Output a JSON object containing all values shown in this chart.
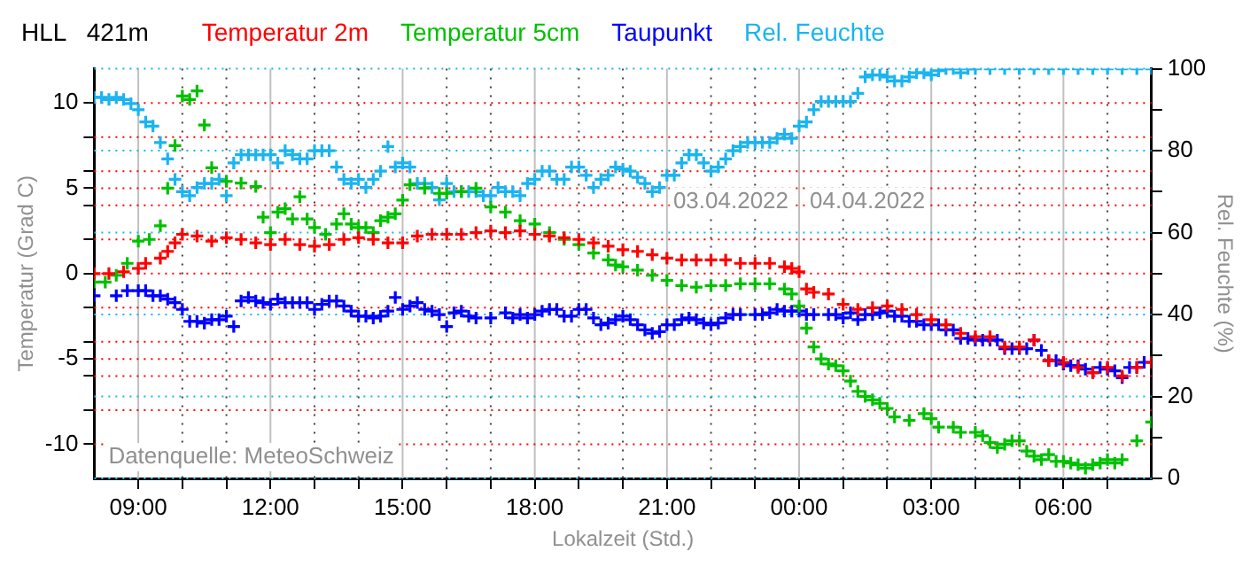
{
  "chart_data": {
    "type": "scatter",
    "title": "HLL   421m",
    "xlabel": "Lokalzeit (Std.)",
    "ylabel": "Temperatur (Grad C)",
    "y2label": "Rel. Feuchte (%)",
    "annotations": [
      "03.04.2022",
      "04.04.2022",
      "Datenquelle: MeteoSchweiz"
    ],
    "xlim": [
      "2022-04-03T08:00",
      "2022-04-04T08:00"
    ],
    "xticks": [
      {
        "value": "2022-04-03T09:00",
        "label": "09:00"
      },
      {
        "value": "2022-04-03T10:00",
        "label": null
      },
      {
        "value": "2022-04-03T11:00",
        "label": null
      },
      {
        "value": "2022-04-03T12:00",
        "label": "12:00"
      },
      {
        "value": "2022-04-03T13:00",
        "label": null
      },
      {
        "value": "2022-04-03T14:00",
        "label": null
      },
      {
        "value": "2022-04-03T15:00",
        "label": "15:00"
      },
      {
        "value": "2022-04-03T16:00",
        "label": null
      },
      {
        "value": "2022-04-03T17:00",
        "label": null
      },
      {
        "value": "2022-04-03T18:00",
        "label": "18:00"
      },
      {
        "value": "2022-04-03T19:00",
        "label": null
      },
      {
        "value": "2022-04-03T20:00",
        "label": null
      },
      {
        "value": "2022-04-03T21:00",
        "label": "21:00"
      },
      {
        "value": "2022-04-03T22:00",
        "label": null
      },
      {
        "value": "2022-04-03T23:00",
        "label": null
      },
      {
        "value": "2022-04-04T00:00",
        "label": "00:00"
      },
      {
        "value": "2022-04-04T01:00",
        "label": null
      },
      {
        "value": "2022-04-04T02:00",
        "label": null
      },
      {
        "value": "2022-04-04T03:00",
        "label": "03:00"
      },
      {
        "value": "2022-04-04T04:00",
        "label": null
      },
      {
        "value": "2022-04-04T05:00",
        "label": null
      },
      {
        "value": "2022-04-04T06:00",
        "label": "06:00"
      },
      {
        "value": "2022-04-04T07:00",
        "label": null
      }
    ],
    "ylim": [
      -12,
      12
    ],
    "yticks": [
      -10,
      {
        "value": -8,
        "label": null
      },
      {
        "value": -6,
        "label": null
      },
      -5,
      {
        "value": -4,
        "label": null
      },
      {
        "value": -2,
        "label": null
      },
      0,
      {
        "value": 2,
        "label": null
      },
      {
        "value": 4,
        "label": null
      },
      5,
      {
        "value": 6,
        "label": null
      },
      {
        "value": 8,
        "label": null
      },
      10
    ],
    "y2lim": [
      0,
      100
    ],
    "y2ticks": [
      0,
      {
        "value": 10,
        "label": null
      },
      20,
      {
        "value": 30,
        "label": null
      },
      40,
      {
        "value": 50,
        "label": null
      },
      60,
      {
        "value": 70,
        "label": null
      },
      80,
      {
        "value": 90,
        "label": null
      },
      100
    ],
    "grid": true,
    "legend": "top",
    "marker": "cross",
    "series": [
      {
        "name": "Temperatur 2m",
        "color": "#ff0000",
        "x": [
          "2022-04-03T08:00",
          "2022-04-03T08:20",
          "2022-04-03T08:40",
          "2022-04-03T09:00",
          "2022-04-03T09:10",
          "2022-04-03T09:30",
          "2022-04-03T09:40",
          "2022-04-03T09:50",
          "2022-04-03T10:00",
          "2022-04-03T10:20",
          "2022-04-03T10:40",
          "2022-04-03T11:00",
          "2022-04-03T11:20",
          "2022-04-03T11:40",
          "2022-04-03T12:00",
          "2022-04-03T12:20",
          "2022-04-03T12:40",
          "2022-04-03T13:00",
          "2022-04-03T13:20",
          "2022-04-03T13:40",
          "2022-04-03T14:00",
          "2022-04-03T14:20",
          "2022-04-03T14:40",
          "2022-04-03T15:00",
          "2022-04-03T15:20",
          "2022-04-03T15:40",
          "2022-04-03T16:00",
          "2022-04-03T16:20",
          "2022-04-03T16:40",
          "2022-04-03T17:00",
          "2022-04-03T17:20",
          "2022-04-03T17:40",
          "2022-04-03T18:00",
          "2022-04-03T18:20",
          "2022-04-03T18:40",
          "2022-04-03T19:00",
          "2022-04-03T19:20",
          "2022-04-03T19:40",
          "2022-04-03T20:00",
          "2022-04-03T20:20",
          "2022-04-03T20:40",
          "2022-04-03T21:00",
          "2022-04-03T21:20",
          "2022-04-03T21:40",
          "2022-04-03T22:00",
          "2022-04-03T22:20",
          "2022-04-03T22:40",
          "2022-04-03T23:00",
          "2022-04-03T23:20",
          "2022-04-03T23:40",
          "2022-04-03T23:50",
          "2022-04-04T00:00",
          "2022-04-04T00:10",
          "2022-04-04T00:20",
          "2022-04-04T00:40",
          "2022-04-04T01:00",
          "2022-04-04T01:20",
          "2022-04-04T01:40",
          "2022-04-04T02:00",
          "2022-04-04T02:20",
          "2022-04-04T02:40",
          "2022-04-04T03:00",
          "2022-04-04T03:20",
          "2022-04-04T03:40",
          "2022-04-04T04:00",
          "2022-04-04T04:20",
          "2022-04-04T04:40",
          "2022-04-04T05:00",
          "2022-04-04T05:20",
          "2022-04-04T05:40",
          "2022-04-04T06:00",
          "2022-04-04T06:20",
          "2022-04-04T06:40",
          "2022-04-04T07:00",
          "2022-04-04T07:20",
          "2022-04-04T07:40",
          "2022-04-04T08:00"
        ],
        "values": [
          0.0,
          0.0,
          0.1,
          0.3,
          0.6,
          0.9,
          1.3,
          1.8,
          2.3,
          2.2,
          1.9,
          2.1,
          2.0,
          1.8,
          1.7,
          2.0,
          1.7,
          1.6,
          1.7,
          2.0,
          2.1,
          2.0,
          1.8,
          1.8,
          2.2,
          2.3,
          2.3,
          2.3,
          2.4,
          2.5,
          2.4,
          2.5,
          2.3,
          2.2,
          2.1,
          2.0,
          1.8,
          1.6,
          1.4,
          1.3,
          1.1,
          0.9,
          0.8,
          0.8,
          0.8,
          0.8,
          0.6,
          0.6,
          0.6,
          0.4,
          0.3,
          0.1,
          -0.9,
          -1.1,
          -1.2,
          -1.8,
          -2.1,
          -2.0,
          -1.9,
          -2.1,
          -2.4,
          -2.7,
          -3.0,
          -3.5,
          -3.7,
          -3.7,
          -4.3,
          -4.3,
          -3.9,
          -5.1,
          -5.2,
          -5.5,
          -5.8,
          -5.5,
          -6.0,
          -5.5,
          -5.2
        ]
      },
      {
        "name": "Temperatur 5cm",
        "color": "#00c000",
        "x": [
          "2022-04-03T08:00",
          "2022-04-03T08:15",
          "2022-04-03T08:30",
          "2022-04-03T08:45",
          "2022-04-03T09:00",
          "2022-04-03T09:15",
          "2022-04-03T09:30",
          "2022-04-03T09:40",
          "2022-04-03T09:50",
          "2022-04-03T10:00",
          "2022-04-03T10:10",
          "2022-04-03T10:20",
          "2022-04-03T10:30",
          "2022-04-03T10:40",
          "2022-04-03T11:00",
          "2022-04-03T11:20",
          "2022-04-03T11:40",
          "2022-04-03T11:50",
          "2022-04-03T12:00",
          "2022-04-03T12:10",
          "2022-04-03T12:20",
          "2022-04-03T12:30",
          "2022-04-03T12:40",
          "2022-04-03T12:50",
          "2022-04-03T13:00",
          "2022-04-03T13:15",
          "2022-04-03T13:30",
          "2022-04-03T13:40",
          "2022-04-03T13:50",
          "2022-04-03T14:00",
          "2022-04-03T14:10",
          "2022-04-03T14:20",
          "2022-04-03T14:30",
          "2022-04-03T14:40",
          "2022-04-03T14:50",
          "2022-04-03T15:00",
          "2022-04-03T15:10",
          "2022-04-03T15:30",
          "2022-04-03T15:50",
          "2022-04-03T16:00",
          "2022-04-03T16:20",
          "2022-04-03T16:40",
          "2022-04-03T17:00",
          "2022-04-03T17:20",
          "2022-04-03T17:40",
          "2022-04-03T18:00",
          "2022-04-03T18:20",
          "2022-04-03T18:40",
          "2022-04-03T19:00",
          "2022-04-03T19:20",
          "2022-04-03T19:40",
          "2022-04-03T19:50",
          "2022-04-03T20:00",
          "2022-04-03T20:20",
          "2022-04-03T20:40",
          "2022-04-03T21:00",
          "2022-04-03T21:20",
          "2022-04-03T21:40",
          "2022-04-03T22:00",
          "2022-04-03T22:20",
          "2022-04-03T22:40",
          "2022-04-03T23:00",
          "2022-04-03T23:20",
          "2022-04-03T23:40",
          "2022-04-03T23:50",
          "2022-04-04T00:00",
          "2022-04-04T00:10",
          "2022-04-04T00:20",
          "2022-04-04T00:30",
          "2022-04-04T00:40",
          "2022-04-04T00:50",
          "2022-04-04T01:00",
          "2022-04-04T01:10",
          "2022-04-04T01:20",
          "2022-04-04T01:30",
          "2022-04-04T01:40",
          "2022-04-04T01:50",
          "2022-04-04T02:00",
          "2022-04-04T02:10",
          "2022-04-04T02:30",
          "2022-04-04T02:50",
          "2022-04-04T03:00",
          "2022-04-04T03:10",
          "2022-04-04T03:30",
          "2022-04-04T03:40",
          "2022-04-04T04:00",
          "2022-04-04T04:10",
          "2022-04-04T04:20",
          "2022-04-04T04:30",
          "2022-04-04T04:40",
          "2022-04-04T04:50",
          "2022-04-04T05:00",
          "2022-04-04T05:10",
          "2022-04-04T05:20",
          "2022-04-04T05:30",
          "2022-04-04T05:40",
          "2022-04-04T05:50",
          "2022-04-04T06:00",
          "2022-04-04T06:10",
          "2022-04-04T06:20",
          "2022-04-04T06:30",
          "2022-04-04T06:40",
          "2022-04-04T06:50",
          "2022-04-04T07:00",
          "2022-04-04T07:10",
          "2022-04-04T07:20",
          "2022-04-04T07:40",
          "2022-04-04T08:00"
        ],
        "values": [
          -0.5,
          -0.5,
          -0.1,
          0.6,
          1.9,
          2.0,
          2.8,
          5.0,
          7.5,
          10.4,
          10.2,
          10.7,
          8.7,
          6.2,
          5.4,
          5.3,
          5.1,
          3.3,
          2.4,
          3.6,
          3.8,
          3.2,
          4.5,
          3.2,
          2.7,
          2.3,
          2.9,
          3.5,
          2.9,
          2.7,
          2.7,
          2.4,
          3.1,
          3.3,
          3.5,
          4.3,
          5.2,
          5.0,
          4.7,
          4.7,
          4.8,
          5.0,
          3.9,
          3.6,
          3.1,
          2.9,
          2.4,
          2.0,
          1.7,
          1.2,
          0.8,
          0.5,
          0.4,
          0.2,
          -0.1,
          -0.4,
          -0.7,
          -0.8,
          -0.7,
          -0.7,
          -0.6,
          -0.6,
          -0.6,
          -0.9,
          -1.2,
          -1.9,
          -3.2,
          -4.3,
          -5.0,
          -5.3,
          -5.4,
          -5.7,
          -6.3,
          -6.9,
          -7.2,
          -7.4,
          -7.6,
          -7.9,
          -8.4,
          -8.6,
          -8.2,
          -8.5,
          -9.0,
          -9.0,
          -9.3,
          -9.3,
          -9.5,
          -9.9,
          -10.2,
          -10.0,
          -9.8,
          -9.8,
          -10.4,
          -10.7,
          -10.9,
          -10.6,
          -11.0,
          -11.0,
          -11.1,
          -11.2,
          -11.4,
          -11.2,
          -11.1,
          -10.9,
          -11.1,
          -10.9,
          -9.8,
          -8.7
        ]
      },
      {
        "name": "Taupunkt",
        "color": "#0000ff",
        "x": [
          "2022-04-03T08:00",
          "2022-04-03T08:30",
          "2022-04-03T08:45",
          "2022-04-03T09:00",
          "2022-04-03T09:10",
          "2022-04-03T09:20",
          "2022-04-03T09:30",
          "2022-04-03T09:40",
          "2022-04-03T09:50",
          "2022-04-03T10:00",
          "2022-04-03T10:10",
          "2022-04-03T10:20",
          "2022-04-03T10:30",
          "2022-04-03T10:40",
          "2022-04-03T10:50",
          "2022-04-03T11:00",
          "2022-04-03T11:10",
          "2022-04-03T11:20",
          "2022-04-03T11:30",
          "2022-04-03T11:40",
          "2022-04-03T11:50",
          "2022-04-03T12:00",
          "2022-04-03T12:10",
          "2022-04-03T12:20",
          "2022-04-03T12:30",
          "2022-04-03T12:40",
          "2022-04-03T12:50",
          "2022-04-03T13:00",
          "2022-04-03T13:10",
          "2022-04-03T13:20",
          "2022-04-03T13:30",
          "2022-04-03T13:40",
          "2022-04-03T13:50",
          "2022-04-03T14:00",
          "2022-04-03T14:10",
          "2022-04-03T14:20",
          "2022-04-03T14:30",
          "2022-04-03T14:40",
          "2022-04-03T14:50",
          "2022-04-03T15:00",
          "2022-04-03T15:10",
          "2022-04-03T15:20",
          "2022-04-03T15:30",
          "2022-04-03T15:40",
          "2022-04-03T15:50",
          "2022-04-03T16:00",
          "2022-04-03T16:10",
          "2022-04-03T16:20",
          "2022-04-03T16:30",
          "2022-04-03T16:40",
          "2022-04-03T17:00",
          "2022-04-03T17:20",
          "2022-04-03T17:30",
          "2022-04-03T17:40",
          "2022-04-03T17:50",
          "2022-04-03T18:00",
          "2022-04-03T18:10",
          "2022-04-03T18:20",
          "2022-04-03T18:30",
          "2022-04-03T18:40",
          "2022-04-03T18:50",
          "2022-04-03T19:00",
          "2022-04-03T19:10",
          "2022-04-03T19:20",
          "2022-04-03T19:30",
          "2022-04-03T19:40",
          "2022-04-03T19:50",
          "2022-04-03T20:00",
          "2022-04-03T20:10",
          "2022-04-03T20:20",
          "2022-04-03T20:30",
          "2022-04-03T20:40",
          "2022-04-03T20:50",
          "2022-04-03T21:00",
          "2022-04-03T21:10",
          "2022-04-03T21:20",
          "2022-04-03T21:30",
          "2022-04-03T21:40",
          "2022-04-03T21:50",
          "2022-04-03T22:00",
          "2022-04-03T22:10",
          "2022-04-03T22:20",
          "2022-04-03T22:30",
          "2022-04-03T22:40",
          "2022-04-03T23:00",
          "2022-04-03T23:10",
          "2022-04-03T23:20",
          "2022-04-03T23:30",
          "2022-04-03T23:40",
          "2022-04-03T23:50",
          "2022-04-04T00:00",
          "2022-04-04T00:10",
          "2022-04-04T00:20",
          "2022-04-04T00:40",
          "2022-04-04T00:50",
          "2022-04-04T01:00",
          "2022-04-04T01:10",
          "2022-04-04T01:20",
          "2022-04-04T01:30",
          "2022-04-04T01:40",
          "2022-04-04T01:50",
          "2022-04-04T02:00",
          "2022-04-04T02:10",
          "2022-04-04T02:20",
          "2022-04-04T02:30",
          "2022-04-04T02:40",
          "2022-04-04T02:50",
          "2022-04-04T03:00",
          "2022-04-04T03:10",
          "2022-04-04T03:20",
          "2022-04-04T03:30",
          "2022-04-04T03:40",
          "2022-04-04T03:50",
          "2022-04-04T04:00",
          "2022-04-04T04:10",
          "2022-04-04T04:20",
          "2022-04-04T04:30",
          "2022-04-04T04:40",
          "2022-04-04T04:50",
          "2022-04-04T05:00",
          "2022-04-04T05:10",
          "2022-04-04T05:20",
          "2022-04-04T05:30",
          "2022-04-04T05:40",
          "2022-04-04T05:50",
          "2022-04-04T06:00",
          "2022-04-04T06:10",
          "2022-04-04T06:20",
          "2022-04-04T06:30",
          "2022-04-04T06:40",
          "2022-04-04T06:50",
          "2022-04-04T07:00",
          "2022-04-04T07:10",
          "2022-04-04T07:20",
          "2022-04-04T07:30",
          "2022-04-04T07:40",
          "2022-04-04T07:50"
        ],
        "values": [
          -1.3,
          -1.3,
          -1.0,
          -1.0,
          -1.0,
          -1.3,
          -1.3,
          -1.5,
          -1.7,
          -2.1,
          -2.8,
          -2.8,
          -2.9,
          -2.7,
          -2.7,
          -2.5,
          -3.1,
          -1.6,
          -1.4,
          -1.6,
          -1.7,
          -1.8,
          -1.5,
          -1.7,
          -1.7,
          -1.7,
          -1.7,
          -2.1,
          -1.8,
          -1.6,
          -1.6,
          -1.9,
          -2.2,
          -2.5,
          -2.5,
          -2.6,
          -2.5,
          -2.2,
          -1.4,
          -2.1,
          -1.9,
          -1.7,
          -2.1,
          -2.2,
          -2.4,
          -3.1,
          -2.3,
          -2.2,
          -2.5,
          -2.6,
          -2.6,
          -2.3,
          -2.6,
          -2.4,
          -2.6,
          -2.4,
          -2.2,
          -2.1,
          -2.1,
          -2.5,
          -2.5,
          -2.1,
          -2.1,
          -2.6,
          -3.0,
          -2.9,
          -2.7,
          -2.5,
          -2.7,
          -3.0,
          -3.3,
          -3.5,
          -3.4,
          -3.0,
          -3.0,
          -2.7,
          -2.6,
          -2.7,
          -2.9,
          -3.0,
          -2.9,
          -2.6,
          -2.4,
          -2.4,
          -2.4,
          -2.4,
          -2.3,
          -2.1,
          -2.2,
          -2.2,
          -2.2,
          -2.4,
          -2.4,
          -2.4,
          -2.4,
          -2.6,
          -2.3,
          -2.7,
          -2.4,
          -2.4,
          -2.3,
          -2.2,
          -2.5,
          -2.5,
          -2.8,
          -2.8,
          -3.0,
          -3.0,
          -3.0,
          -3.3,
          -3.3,
          -3.8,
          -3.8,
          -3.9,
          -3.9,
          -3.9,
          -3.9,
          -4.4,
          -4.4,
          -4.4,
          -4.4,
          -3.9,
          -4.5,
          -5.1,
          -5.1,
          -5.3,
          -5.4,
          -5.4,
          -5.6,
          -5.8,
          -5.5,
          -5.6,
          -5.7,
          -6.1,
          -5.5,
          -5.5,
          -5.2
        ]
      },
      {
        "name": "Rel. Feuchte",
        "color": "#1ab4f0",
        "axis": "y2",
        "x": [
          "2022-04-03T08:00",
          "2022-04-03T08:10",
          "2022-04-03T08:20",
          "2022-04-03T08:30",
          "2022-04-03T08:40",
          "2022-04-03T08:50",
          "2022-04-03T09:00",
          "2022-04-03T09:10",
          "2022-04-03T09:20",
          "2022-04-03T09:30",
          "2022-04-03T09:40",
          "2022-04-03T09:50",
          "2022-04-03T10:00",
          "2022-04-03T10:10",
          "2022-04-03T10:20",
          "2022-04-03T10:30",
          "2022-04-03T10:40",
          "2022-04-03T10:50",
          "2022-04-03T11:00",
          "2022-04-03T11:10",
          "2022-04-03T11:20",
          "2022-04-03T11:30",
          "2022-04-03T11:40",
          "2022-04-03T11:50",
          "2022-04-03T12:00",
          "2022-04-03T12:10",
          "2022-04-03T12:20",
          "2022-04-03T12:30",
          "2022-04-03T12:40",
          "2022-04-03T12:50",
          "2022-04-03T13:00",
          "2022-04-03T13:10",
          "2022-04-03T13:20",
          "2022-04-03T13:30",
          "2022-04-03T13:40",
          "2022-04-03T13:50",
          "2022-04-03T14:00",
          "2022-04-03T14:10",
          "2022-04-03T14:20",
          "2022-04-03T14:30",
          "2022-04-03T14:40",
          "2022-04-03T14:50",
          "2022-04-03T15:00",
          "2022-04-03T15:10",
          "2022-04-03T15:20",
          "2022-04-03T15:30",
          "2022-04-03T15:40",
          "2022-04-03T15:50",
          "2022-04-03T16:00",
          "2022-04-03T16:10",
          "2022-04-03T16:20",
          "2022-04-03T16:30",
          "2022-04-03T16:40",
          "2022-04-03T16:50",
          "2022-04-03T17:00",
          "2022-04-03T17:10",
          "2022-04-03T17:20",
          "2022-04-03T17:30",
          "2022-04-03T17:40",
          "2022-04-03T17:50",
          "2022-04-03T18:00",
          "2022-04-03T18:10",
          "2022-04-03T18:20",
          "2022-04-03T18:30",
          "2022-04-03T18:40",
          "2022-04-03T18:50",
          "2022-04-03T19:00",
          "2022-04-03T19:10",
          "2022-04-03T19:20",
          "2022-04-03T19:30",
          "2022-04-03T19:40",
          "2022-04-03T19:50",
          "2022-04-03T20:00",
          "2022-04-03T20:10",
          "2022-04-03T20:20",
          "2022-04-03T20:30",
          "2022-04-03T20:40",
          "2022-04-03T20:50",
          "2022-04-03T21:00",
          "2022-04-03T21:10",
          "2022-04-03T21:20",
          "2022-04-03T21:30",
          "2022-04-03T21:40",
          "2022-04-03T21:50",
          "2022-04-03T22:00",
          "2022-04-03T22:10",
          "2022-04-03T22:20",
          "2022-04-03T22:30",
          "2022-04-03T22:40",
          "2022-04-03T22:50",
          "2022-04-03T23:00",
          "2022-04-03T23:10",
          "2022-04-03T23:20",
          "2022-04-03T23:30",
          "2022-04-03T23:40",
          "2022-04-03T23:50",
          "2022-04-04T00:00",
          "2022-04-04T00:10",
          "2022-04-04T00:20",
          "2022-04-04T00:30",
          "2022-04-04T00:40",
          "2022-04-04T00:50",
          "2022-04-04T01:00",
          "2022-04-04T01:10",
          "2022-04-04T01:20",
          "2022-04-04T01:30",
          "2022-04-04T01:40",
          "2022-04-04T01:50",
          "2022-04-04T02:00",
          "2022-04-04T02:10",
          "2022-04-04T02:20",
          "2022-04-04T02:30",
          "2022-04-04T02:40",
          "2022-04-04T02:50",
          "2022-04-04T03:00",
          "2022-04-04T03:10",
          "2022-04-04T03:20",
          "2022-04-04T03:30",
          "2022-04-04T03:40",
          "2022-04-04T03:50",
          "2022-04-04T04:00",
          "2022-04-04T04:20",
          "2022-04-04T04:40",
          "2022-04-04T05:00",
          "2022-04-04T05:20",
          "2022-04-04T05:40",
          "2022-04-04T06:00",
          "2022-04-04T06:20",
          "2022-04-04T06:40",
          "2022-04-04T07:00",
          "2022-04-04T07:20",
          "2022-04-04T07:40",
          "2022-04-04T08:00"
        ],
        "values": [
          93,
          93,
          92.5,
          93,
          92.5,
          91.5,
          90,
          87,
          86,
          82,
          78,
          73,
          70,
          69,
          71,
          72,
          72,
          73,
          69,
          77,
          79,
          79,
          79,
          79,
          79,
          77,
          80,
          79,
          78,
          78,
          80,
          80,
          80,
          76,
          73,
          72,
          73,
          71,
          73,
          75,
          81,
          76,
          77,
          76,
          72,
          72,
          71,
          68,
          72,
          70,
          70,
          70,
          70,
          69,
          69,
          71,
          70,
          70,
          69,
          72,
          73,
          75,
          75,
          73,
          73,
          76,
          76,
          74,
          71,
          73,
          74,
          76,
          75.5,
          75,
          73.5,
          72,
          70,
          71,
          74,
          74,
          77,
          79,
          79,
          77,
          75,
          76,
          78,
          80,
          81,
          82,
          82,
          82,
          82,
          83,
          84,
          83,
          86,
          87,
          90,
          92,
          92,
          92,
          92,
          92,
          94,
          98,
          98.5,
          98.5,
          98,
          97,
          97,
          98,
          99,
          99,
          98.5,
          99.5,
          100,
          100,
          99,
          100,
          100,
          100,
          100,
          100,
          100,
          100,
          100,
          100,
          100,
          100,
          100,
          100,
          100
        ]
      }
    ]
  }
}
